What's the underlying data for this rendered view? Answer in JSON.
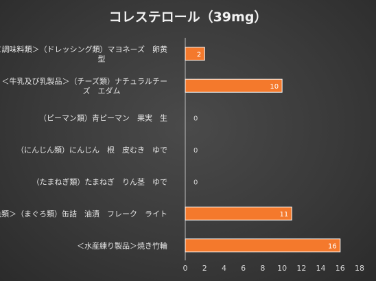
{
  "chart_data": {
    "type": "bar",
    "orientation": "horizontal",
    "title": "コレステロール（39mg）",
    "categories": [
      [
        "＜調味料類＞（ドレッシング類）マヨネーズ　卵黄",
        "型"
      ],
      [
        "＜牛乳及び乳製品＞（チーズ類）ナチュラルチー",
        "ズ　エダム"
      ],
      [
        "（ピーマン類）青ピーマン　果実　生"
      ],
      [
        "（にんじん類）にんじん　根　皮むき　ゆで"
      ],
      [
        "（たまねぎ類）たまねぎ　りん茎　ゆで"
      ],
      [
        "＜魚類＞（まぐろ類）缶詰　油漬　フレーク　ライト"
      ],
      [
        "＜水産練り製品＞焼き竹輪"
      ]
    ],
    "values": [
      2,
      10,
      0,
      0,
      0,
      11,
      16
    ],
    "data_labels": [
      "2",
      "10",
      "0",
      "0",
      "0",
      "11",
      "16"
    ],
    "x_ticks": [
      "0",
      "2",
      "4",
      "6",
      "8",
      "10",
      "12",
      "14",
      "16",
      "18"
    ],
    "xlim": [
      0,
      18
    ],
    "bar_color": "#f4792c",
    "bar_border_color": "#ffffff",
    "grid": false,
    "legend": "none"
  }
}
